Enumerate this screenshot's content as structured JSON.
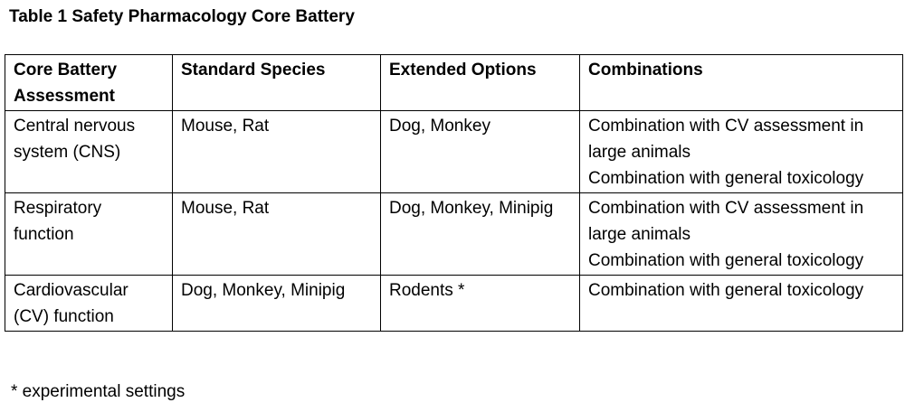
{
  "title": "Table 1 Safety Pharmacology Core Battery",
  "table": {
    "header": [
      "Core Battery Assessment",
      "Standard Species",
      "Extended Options",
      "Combinations"
    ],
    "rows": [
      [
        [
          "Central nervous system (CNS)"
        ],
        [
          "Mouse, Rat"
        ],
        [
          "Dog, Monkey"
        ],
        [
          "Combination with CV assessment in large animals",
          "Combination with general toxicology"
        ]
      ],
      [
        [
          "Respiratory function"
        ],
        [
          "Mouse, Rat"
        ],
        [
          "Dog, Monkey, Minipig"
        ],
        [
          "Combination with CV assessment in large animals",
          "Combination with general toxicology"
        ]
      ],
      [
        [
          "Cardiovascular (CV) function"
        ],
        [
          "Dog, Monkey, Minipig"
        ],
        [
          "Rodents *"
        ],
        [
          "Combination with general toxicology"
        ]
      ]
    ]
  },
  "footnote": "* experimental settings"
}
